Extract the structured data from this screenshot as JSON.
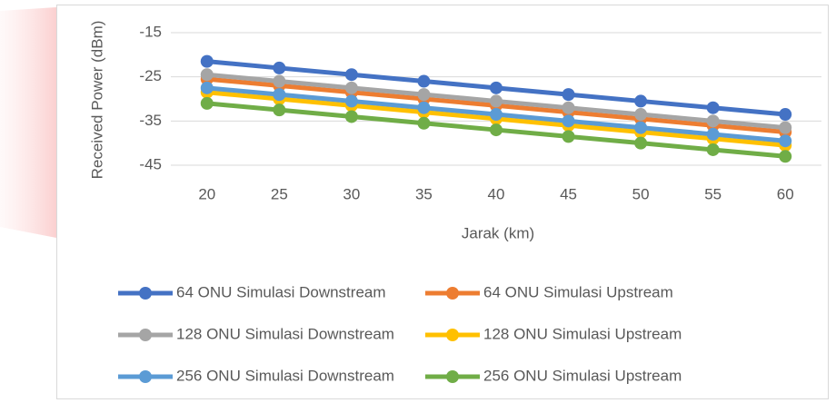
{
  "chart_data": {
    "type": "line",
    "y_label": "Received Power (dBm)",
    "x_label": "Jarak (km)",
    "categories": [
      20,
      25,
      30,
      35,
      40,
      45,
      50,
      55,
      60
    ],
    "ylim": [
      -45,
      -15
    ],
    "yticks": [
      -15,
      -25,
      -35,
      -45
    ],
    "grid": true,
    "legend": "bottom",
    "series": [
      {
        "name": "64 ONU Simulasi Downstream",
        "color": "#4472c4",
        "values": [
          -21.5,
          -23,
          -24.5,
          -26,
          -27.5,
          -29,
          -30.5,
          -32,
          -33.5
        ]
      },
      {
        "name": "64 ONU Simulasi Upstream",
        "color": "#ed7d31",
        "values": [
          -25.5,
          -27,
          -28.5,
          -30,
          -31.5,
          -33,
          -34.5,
          -36,
          -37.5
        ]
      },
      {
        "name": "128 ONU Simulasi Downstream",
        "color": "#a5a5a5",
        "values": [
          -24.5,
          -26,
          -27.5,
          -29,
          -30.5,
          -32,
          -33.5,
          -35,
          -36.5
        ]
      },
      {
        "name": "128 ONU Simulasi Upstream",
        "color": "#ffc000",
        "values": [
          -28.5,
          -30,
          -31.5,
          -33,
          -34.5,
          -36,
          -37.5,
          -39,
          -40.5
        ]
      },
      {
        "name": "256 ONU Simulasi Downstream",
        "color": "#5b9bd5",
        "values": [
          -27.5,
          -29,
          -30.5,
          -32,
          -33.5,
          -35,
          -36.5,
          -38,
          -39.5
        ]
      },
      {
        "name": "256 ONU Simulasi Upstream",
        "color": "#70ad47",
        "values": [
          -31,
          -32.5,
          -34,
          -35.5,
          -37,
          -38.5,
          -40,
          -41.5,
          -43
        ]
      }
    ]
  }
}
